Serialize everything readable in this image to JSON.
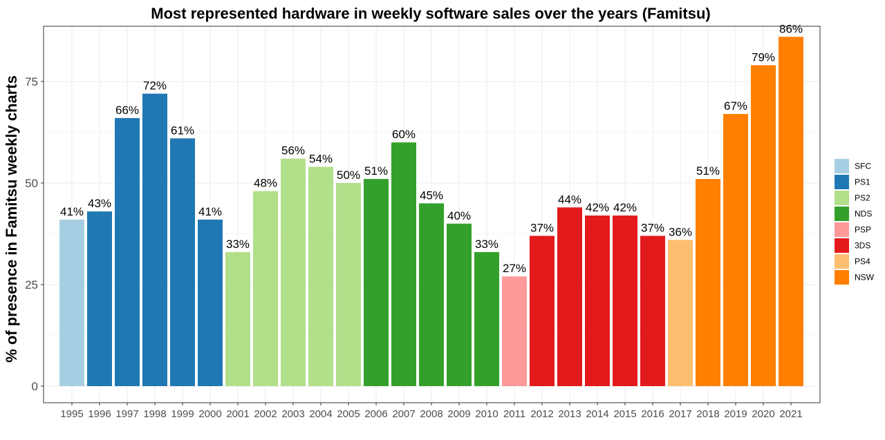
{
  "chart_data": {
    "type": "bar",
    "title": "Most represented hardware in weekly software sales over the years (Famitsu)",
    "xlabel": "",
    "ylabel": "% of presence in Famitsu weekly charts",
    "ylim": [
      0,
      90
    ],
    "yticks": [
      0,
      25,
      50,
      75
    ],
    "grid": true,
    "legend_position": "right",
    "categories": [
      "1995",
      "1996",
      "1997",
      "1998",
      "1999",
      "2000",
      "2001",
      "2002",
      "2003",
      "2004",
      "2005",
      "2006",
      "2007",
      "2008",
      "2009",
      "2010",
      "2011",
      "2012",
      "2013",
      "2014",
      "2015",
      "2016",
      "2017",
      "2018",
      "2019",
      "2020",
      "2021"
    ],
    "values": [
      41,
      43,
      66,
      72,
      61,
      41,
      33,
      48,
      56,
      54,
      50,
      51,
      60,
      45,
      40,
      33,
      27,
      37,
      44,
      42,
      42,
      37,
      36,
      51,
      67,
      79,
      86
    ],
    "data_labels": [
      "41%",
      "43%",
      "66%",
      "72%",
      "61%",
      "41%",
      "33%",
      "48%",
      "56%",
      "54%",
      "50%",
      "51%",
      "60%",
      "45%",
      "40%",
      "33%",
      "27%",
      "37%",
      "44%",
      "42%",
      "42%",
      "37%",
      "36%",
      "51%",
      "67%",
      "79%",
      "86%"
    ],
    "hardware": [
      "SFC",
      "PS1",
      "PS1",
      "PS1",
      "PS1",
      "PS1",
      "PS2",
      "PS2",
      "PS2",
      "PS2",
      "PS2",
      "NDS",
      "NDS",
      "NDS",
      "NDS",
      "NDS",
      "PSP",
      "3DS",
      "3DS",
      "3DS",
      "3DS",
      "3DS",
      "PS4",
      "NSW",
      "NSW",
      "NSW",
      "NSW"
    ],
    "legend": [
      {
        "name": "SFC",
        "color": "#a6cee3"
      },
      {
        "name": "PS1",
        "color": "#1f78b4"
      },
      {
        "name": "PS2",
        "color": "#b2df8a"
      },
      {
        "name": "NDS",
        "color": "#33a02c"
      },
      {
        "name": "PSP",
        "color": "#fb9a99"
      },
      {
        "name": "3DS",
        "color": "#e31a1c"
      },
      {
        "name": "PS4",
        "color": "#fdbf6f"
      },
      {
        "name": "NSW",
        "color": "#ff7f00"
      }
    ]
  }
}
